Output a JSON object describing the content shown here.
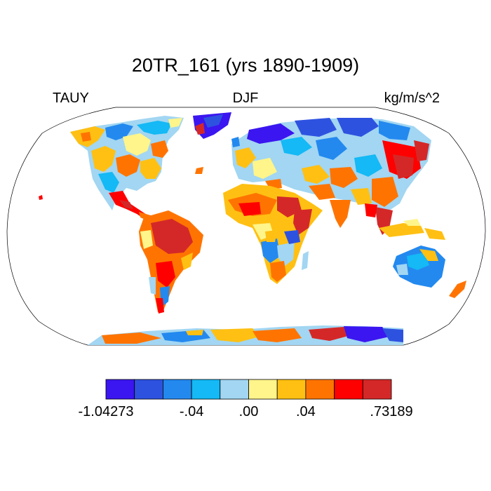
{
  "title": "20TR_161 (yrs 1890-1909)",
  "variable": "TAUY",
  "season": "DJF",
  "units": "kg/m/s^2",
  "colorbar": {
    "colors": [
      "#3b16f0",
      "#2e52e0",
      "#2389ef",
      "#14b9f5",
      "#a2d6f2",
      "#fff58a",
      "#ffc013",
      "#ff7400",
      "#ff0000",
      "#d42828"
    ],
    "labels": [
      "-1.04273",
      "-.04",
      ".00",
      ".04",
      ".73189"
    ]
  },
  "map": {
    "projection": "Robinson",
    "land_only": true
  }
}
